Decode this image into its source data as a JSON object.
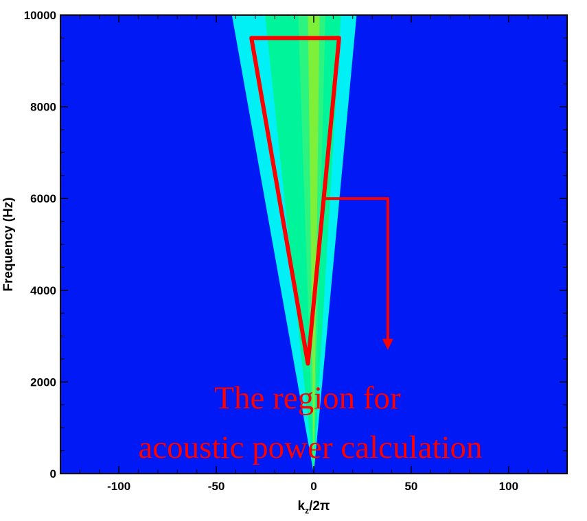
{
  "chart_data": {
    "type": "heatmap",
    "title": "",
    "xlabel": {
      "main": "k",
      "sub": "z",
      "suffix": "/2π"
    },
    "ylabel": "Frequency (Hz)",
    "xlim": [
      -130,
      130
    ],
    "ylim": [
      0,
      10000
    ],
    "x_ticks": [
      -100,
      -50,
      0,
      50,
      100
    ],
    "y_ticks": [
      0,
      2000,
      4000,
      6000,
      8000,
      10000
    ],
    "grid": false,
    "colors": {
      "background": "#0019f5",
      "outer_cone": "#00f0f5",
      "mid_cone": "#00f59a",
      "inner_cone": "#2bf580",
      "core": "#7ef03a",
      "highlight": "#ff0000"
    },
    "energy_cone": {
      "description_levels": [
        "outer",
        "mid",
        "inner",
        "core"
      ],
      "outer_edge_at_top": [
        -42,
        22
      ],
      "mid_edge_at_top": [
        -25,
        14
      ],
      "inner_edge_at_top": [
        -8,
        6
      ],
      "core_edge_at_top": [
        -3,
        3
      ],
      "apex": [
        0,
        0
      ]
    },
    "highlight_region": {
      "vertices": [
        [
          -32,
          9500
        ],
        [
          13,
          9500
        ],
        [
          -3,
          2400
        ]
      ]
    },
    "pointer_arrow": {
      "path": [
        [
          6,
          6000
        ],
        [
          38,
          6000
        ],
        [
          38,
          2700
        ]
      ]
    },
    "annotation": {
      "line1": "The region for",
      "line2": "acoustic power calculation"
    }
  }
}
